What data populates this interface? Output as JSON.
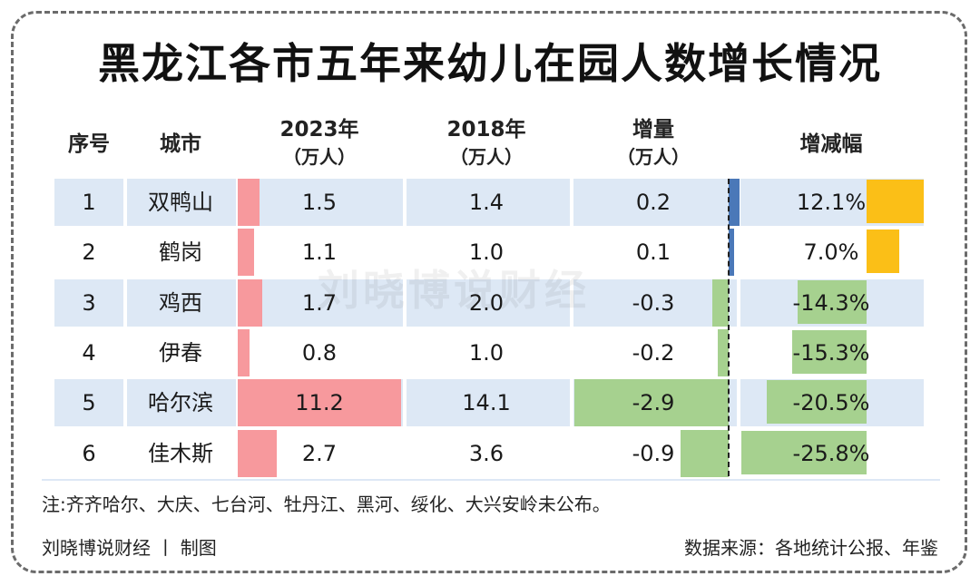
{
  "title": "黑龙江各市五年来幼儿在园人数增长情况",
  "watermark": "刘晓博说财经",
  "headers": {
    "index": "序号",
    "city": "城市",
    "y2023": "2023年",
    "y2023_unit": "（万人）",
    "y2018": "2018年",
    "y2018_unit": "（万人）",
    "change": "增量",
    "change_unit": "（万人）",
    "rate": "增减幅"
  },
  "rows": [
    {
      "index": "1",
      "city": "双鸭山",
      "y2023": "1.5",
      "y2018": "1.4",
      "change": "0.2",
      "rate": "12.1%"
    },
    {
      "index": "2",
      "city": "鹤岗",
      "y2023": "1.1",
      "y2018": "1.0",
      "change": "0.1",
      "rate": "7.0%"
    },
    {
      "index": "3",
      "city": "鸡西",
      "y2023": "1.7",
      "y2018": "2.0",
      "change": "-0.3",
      "rate": "-14.3%"
    },
    {
      "index": "4",
      "city": "伊春",
      "y2023": "0.8",
      "y2018": "1.0",
      "change": "-0.2",
      "rate": "-15.3%"
    },
    {
      "index": "5",
      "city": "哈尔滨",
      "y2023": "11.2",
      "y2018": "14.1",
      "change": "-2.9",
      "rate": "-20.5%"
    },
    {
      "index": "6",
      "city": "佳木斯",
      "y2023": "2.7",
      "y2018": "3.6",
      "change": "-0.9",
      "rate": "-25.8%"
    }
  ],
  "note": "注:齐齐哈尔、大庆、七台河、牡丹江、黑河、绥化、大兴安岭未公布。",
  "credit": "刘晓博说财经 丨 制图",
  "source": "数据来源：各地统计公报、年鉴",
  "colors": {
    "bar_2023": "#f7999d",
    "change_pos": "#4a78b8",
    "change_neg": "#a6d18f",
    "rate_pos": "#fbbf17",
    "rate_neg": "#a6d18f",
    "stripe": "#dde8f5"
  },
  "chart_data": {
    "type": "table",
    "title": "黑龙江各市五年来幼儿在园人数增长情况",
    "columns": [
      "序号",
      "城市",
      "2023年（万人）",
      "2018年（万人）",
      "增量（万人）",
      "增减幅"
    ],
    "categories": [
      "双鸭山",
      "鹤岗",
      "鸡西",
      "伊春",
      "哈尔滨",
      "佳木斯"
    ],
    "series": [
      {
        "name": "2023年（万人）",
        "values": [
          1.5,
          1.1,
          1.7,
          0.8,
          11.2,
          2.7
        ]
      },
      {
        "name": "2018年（万人）",
        "values": [
          1.4,
          1.0,
          2.0,
          1.0,
          14.1,
          3.6
        ]
      },
      {
        "name": "增量（万人）",
        "values": [
          0.2,
          0.1,
          -0.3,
          -0.2,
          -2.9,
          -0.9
        ]
      },
      {
        "name": "增减幅",
        "values": [
          12.1,
          7.0,
          -14.3,
          -15.3,
          -20.5,
          -25.8
        ]
      }
    ]
  }
}
